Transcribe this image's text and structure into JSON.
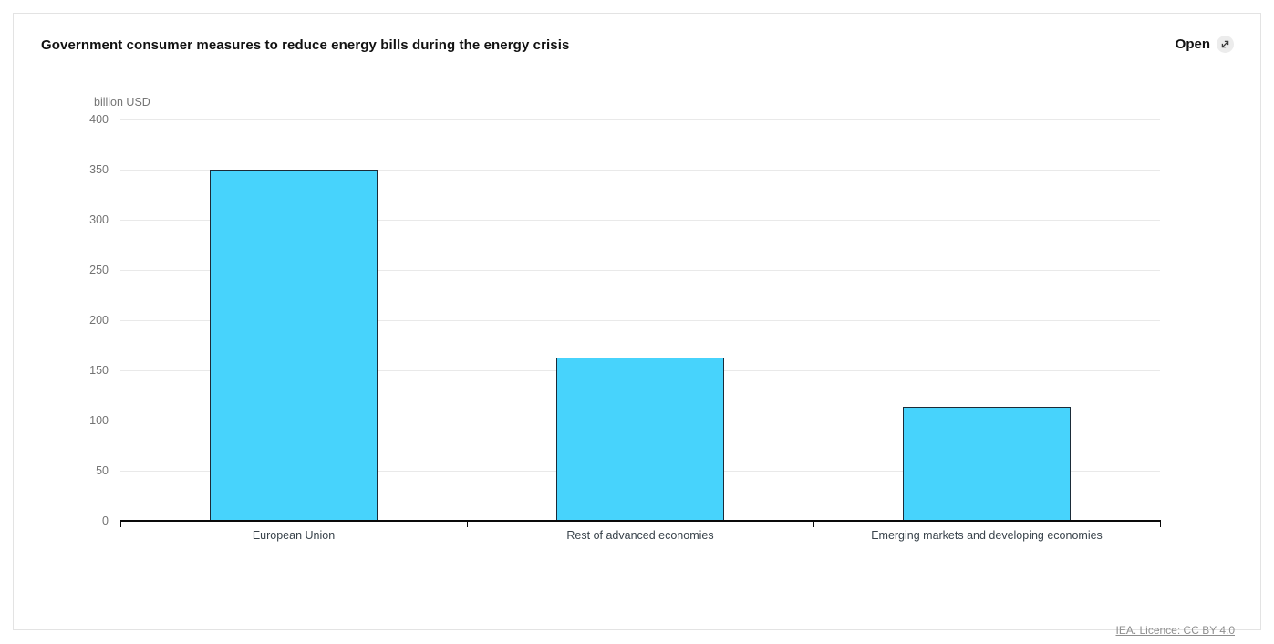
{
  "header": {
    "title": "Government consumer measures to reduce energy bills during the energy crisis",
    "open_button": {
      "label": "Open",
      "icon": "open-expand-icon"
    }
  },
  "chart_data": {
    "type": "bar",
    "title": "Government consumer measures to reduce energy bills during the energy crisis",
    "ylabel": "billion USD",
    "xlabel": "",
    "categories": [
      "European Union",
      "Rest of advanced economies",
      "Emerging markets and developing economies"
    ],
    "values": [
      350,
      163,
      114
    ],
    "ylim": [
      0,
      400
    ],
    "ytick_interval": 50,
    "yticks": [
      0,
      50,
      100,
      150,
      200,
      250,
      300,
      350,
      400
    ],
    "grid": true,
    "legend": "none",
    "bar_fill_color": "#47d3fc",
    "bar_border_color": "#1b2b38"
  },
  "footer": {
    "source_link": "IEA. Licence: CC BY 4.0"
  }
}
